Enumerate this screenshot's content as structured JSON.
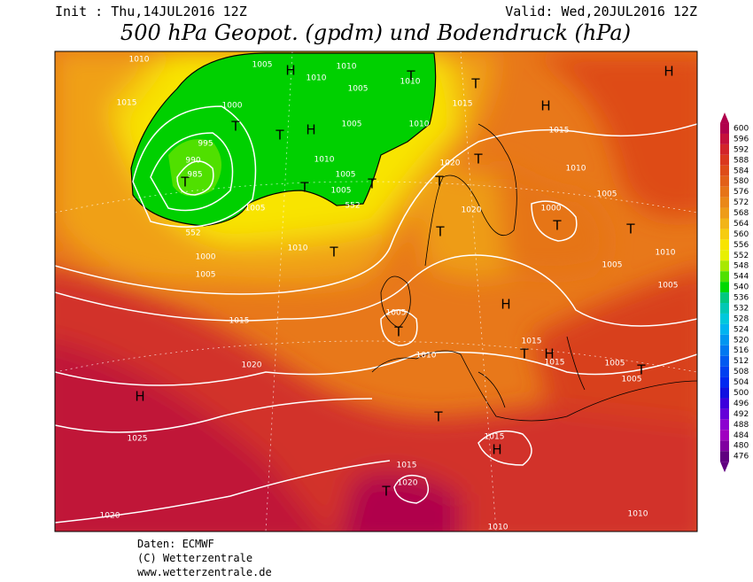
{
  "header": {
    "init": "Init : Thu,14JUL2016 12Z",
    "valid": "Valid: Wed,20JUL2016 12Z",
    "title": "500 hPa Geopot. (gpdm) und Bodendruck (hPa)"
  },
  "footer": {
    "source": "Daten: ECMWF",
    "copyright": "(C) Wetterzentrale",
    "url": "www.wetterzentrale.de"
  },
  "colorbar": {
    "labels": [
      600,
      596,
      592,
      588,
      584,
      580,
      576,
      572,
      568,
      564,
      560,
      556,
      552,
      548,
      544,
      540,
      536,
      532,
      528,
      524,
      520,
      516,
      512,
      508,
      504,
      500,
      496,
      492,
      488,
      484,
      480,
      476
    ],
    "colors": [
      "#b0004c",
      "#c4103c",
      "#d2242a",
      "#da381e",
      "#de4c18",
      "#e26018",
      "#e67418",
      "#ea8818",
      "#ee9c18",
      "#f2b418",
      "#f6cc10",
      "#f8e400",
      "#e8f000",
      "#a8e800",
      "#50e000",
      "#00d800",
      "#00c880",
      "#00c8b4",
      "#00c8dc",
      "#00b4f0",
      "#0096f0",
      "#0078f0",
      "#005af0",
      "#0040f0",
      "#0028f0",
      "#1010e0",
      "#3c00dc",
      "#6400d8",
      "#8c00d0",
      "#a000c0",
      "#8000a0",
      "#600080"
    ]
  },
  "map_labels": [
    "1010",
    "1005",
    "1010",
    "1010",
    "1010",
    "1005",
    "1015",
    "1000",
    "1005",
    "1010",
    "1015",
    "1015",
    "1010",
    "1020",
    "995",
    "990",
    "985",
    "1010",
    "1005",
    "1005",
    "1005",
    "552",
    "552",
    "1005",
    "1000",
    "1020",
    "1010",
    "1000",
    "1005",
    "1010",
    "1005",
    "1005",
    "1005",
    "1015",
    "1015",
    "1015",
    "1010",
    "1005",
    "1005",
    "1020",
    "1025",
    "1015",
    "1015",
    "1020",
    "1020",
    "1010",
    "1010",
    "H",
    "H",
    "H",
    "H",
    "H",
    "H",
    "H",
    "H",
    "T",
    "T",
    "T",
    "T",
    "T",
    "T",
    "T",
    "T",
    "T",
    "T",
    "T",
    "T",
    "T",
    "T",
    "T",
    "T",
    "T",
    "T"
  ]
}
